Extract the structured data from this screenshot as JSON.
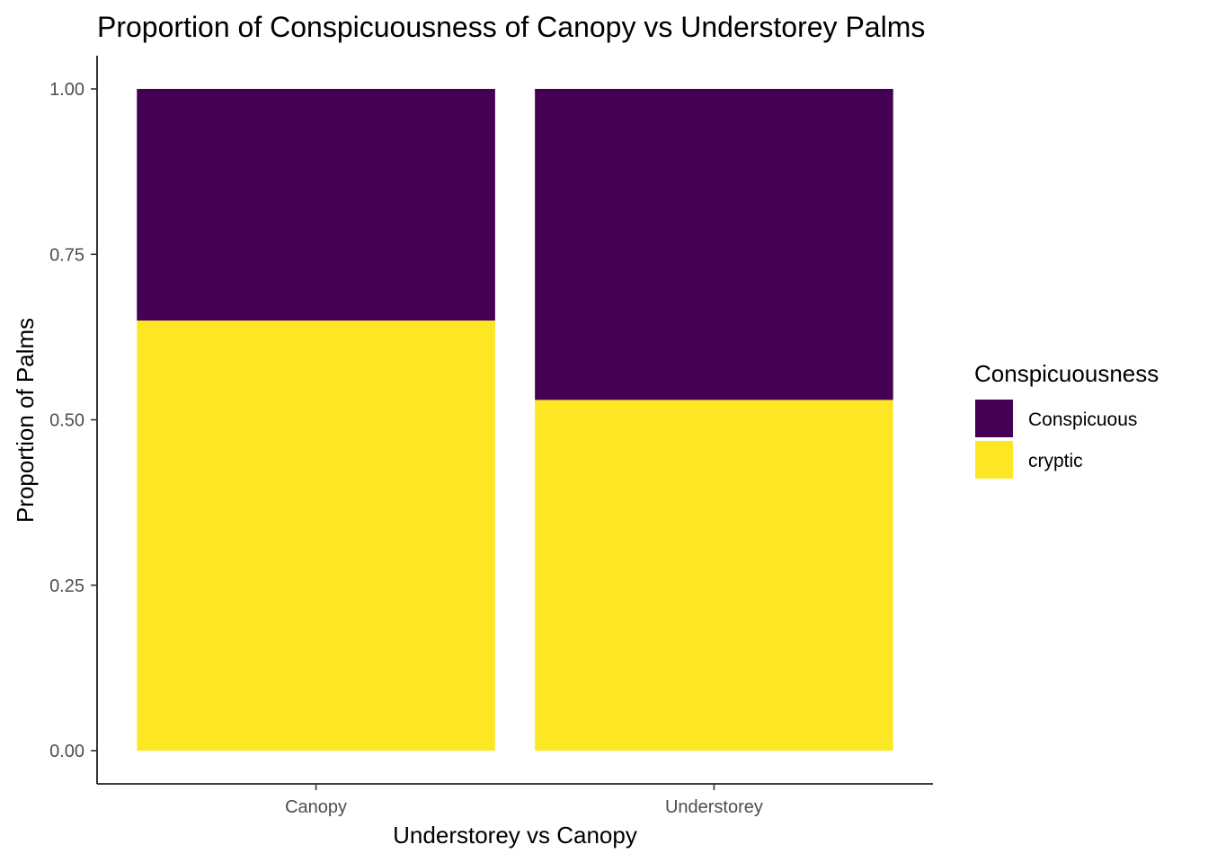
{
  "chart_data": {
    "type": "bar",
    "stacked": true,
    "title": "Proportion of Conspicuousness of Canopy vs Understorey Palms",
    "xlabel": "Understorey vs Canopy",
    "ylabel": "Proportion of Palms",
    "categories": [
      "Canopy",
      "Understorey"
    ],
    "series": [
      {
        "name": "Conspicuous",
        "color": "#440154",
        "values": [
          0.35,
          0.47
        ]
      },
      {
        "name": "cryptic",
        "color": "#FDE725",
        "values": [
          0.65,
          0.53
        ]
      }
    ],
    "ylim": [
      0,
      1
    ],
    "yticks": [
      "0.00",
      "0.25",
      "0.50",
      "0.75",
      "1.00"
    ],
    "legend": {
      "title": "Conspicuousness",
      "position": "right"
    },
    "grid": false
  }
}
